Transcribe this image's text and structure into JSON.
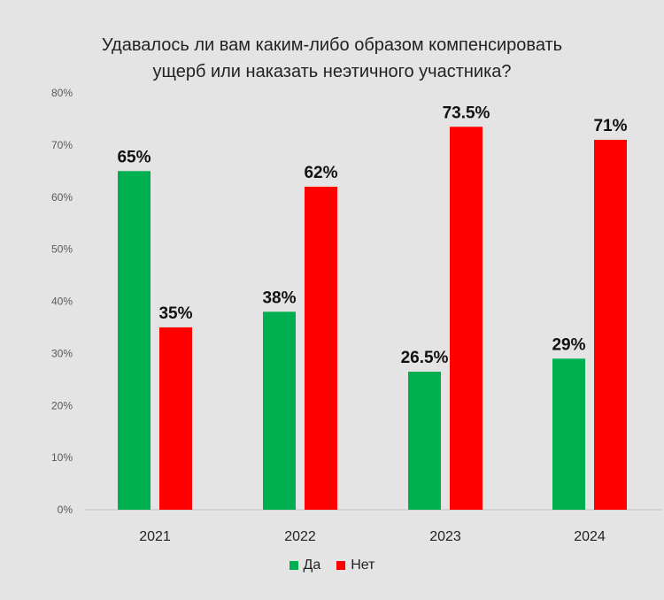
{
  "chart_data": {
    "type": "bar",
    "title": "Удавалось ли вам каким-либо образом компенсировать ущерб или наказать неэтичного участника?",
    "title_lines": [
      "Удавалось ли вам каким-либо образом компенсировать",
      "ущерб или наказать неэтичного участника?"
    ],
    "categories": [
      "2021",
      "2022",
      "2023",
      "2024"
    ],
    "series": [
      {
        "name": "Да",
        "color": "#00b050",
        "values": [
          65,
          38,
          26.5,
          29
        ],
        "labels": [
          "65%",
          "38%",
          "26.5%",
          "29%"
        ]
      },
      {
        "name": "Нет",
        "color": "#ff0000",
        "values": [
          35,
          62,
          73.5,
          71
        ],
        "labels": [
          "35%",
          "62%",
          "73.5%",
          "71%"
        ]
      }
    ],
    "yticks": [
      "0%",
      "10%",
      "20%",
      "30%",
      "40%",
      "50%",
      "60%",
      "70%",
      "80%"
    ],
    "ylim": [
      0,
      80
    ],
    "xlabel": "",
    "ylabel": "",
    "grid": false,
    "legend": "bottom-center"
  }
}
